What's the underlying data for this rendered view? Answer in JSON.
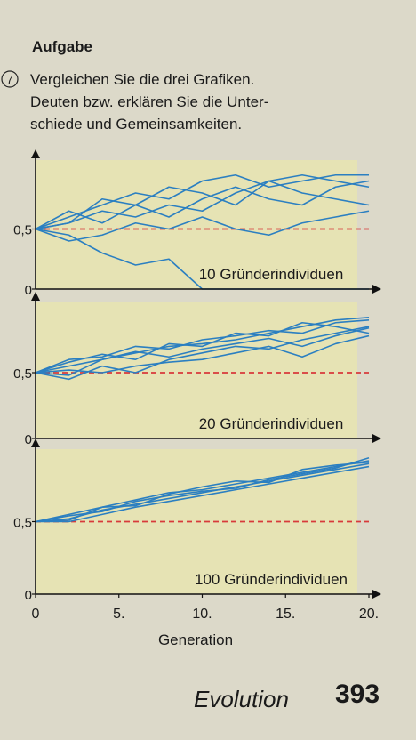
{
  "header": {
    "heading": "Aufgabe",
    "task_number": "7",
    "task_lines": [
      "Vergleichen Sie die drei Grafiken.",
      "Deuten bzw. erklären Sie die Unter-",
      "schiede und Gemeinsamkeiten."
    ]
  },
  "chart_data": [
    {
      "type": "line",
      "annotation": "10 Gründerindividuen",
      "x": [
        0,
        2,
        4,
        6,
        8,
        10,
        12,
        14,
        16,
        18,
        20
      ],
      "xlim": [
        0,
        20
      ],
      "ylim": [
        0,
        1
      ],
      "yticks": [
        0,
        {
          "value": 0.5,
          "label": "0,5"
        }
      ],
      "reference_line": {
        "value": 0.5,
        "color": "#d83a3a"
      },
      "series": [
        {
          "color": "#2b7fc1",
          "values": [
            0.5,
            0.6,
            0.7,
            0.8,
            0.75,
            0.9,
            0.95,
            0.85,
            0.9,
            0.95,
            0.95
          ]
        },
        {
          "color": "#2b7fc1",
          "values": [
            0.5,
            0.45,
            0.3,
            0.2,
            0.25,
            0.0,
            0.0,
            0.0,
            0.0,
            0.0,
            0.0
          ]
        },
        {
          "color": "#2b7fc1",
          "values": [
            0.5,
            0.55,
            0.75,
            0.7,
            0.85,
            0.8,
            0.7,
            0.9,
            0.8,
            0.75,
            0.7
          ]
        },
        {
          "color": "#2b7fc1",
          "values": [
            0.5,
            0.4,
            0.45,
            0.55,
            0.5,
            0.6,
            0.5,
            0.45,
            0.55,
            0.6,
            0.65
          ]
        },
        {
          "color": "#2b7fc1",
          "values": [
            0.5,
            0.65,
            0.55,
            0.7,
            0.6,
            0.75,
            0.85,
            0.75,
            0.7,
            0.85,
            0.9
          ]
        },
        {
          "color": "#2b7fc1",
          "values": [
            0.5,
            0.55,
            0.65,
            0.6,
            0.7,
            0.65,
            0.8,
            0.9,
            0.95,
            0.9,
            0.85
          ]
        }
      ]
    },
    {
      "type": "line",
      "annotation": "20 Gründerindividuen",
      "x": [
        0,
        2,
        4,
        6,
        8,
        10,
        12,
        14,
        16,
        18,
        20
      ],
      "xlim": [
        0,
        20
      ],
      "ylim": [
        0,
        1
      ],
      "yticks": [
        0,
        {
          "value": 0.5,
          "label": "0,5"
        }
      ],
      "reference_line": {
        "value": 0.5,
        "color": "#d83a3a"
      },
      "series": [
        {
          "color": "#2b7fc1",
          "values": [
            0.5,
            0.55,
            0.6,
            0.65,
            0.7,
            0.72,
            0.75,
            0.8,
            0.85,
            0.9,
            0.92
          ]
        },
        {
          "color": "#2b7fc1",
          "values": [
            0.5,
            0.45,
            0.55,
            0.5,
            0.6,
            0.65,
            0.7,
            0.68,
            0.75,
            0.8,
            0.85
          ]
        },
        {
          "color": "#2b7fc1",
          "values": [
            0.5,
            0.6,
            0.62,
            0.7,
            0.68,
            0.75,
            0.78,
            0.82,
            0.8,
            0.88,
            0.9
          ]
        },
        {
          "color": "#2b7fc1",
          "values": [
            0.5,
            0.52,
            0.5,
            0.55,
            0.58,
            0.6,
            0.65,
            0.7,
            0.62,
            0.72,
            0.78
          ]
        },
        {
          "color": "#2b7fc1",
          "values": [
            0.5,
            0.58,
            0.64,
            0.6,
            0.72,
            0.7,
            0.8,
            0.78,
            0.88,
            0.85,
            0.8
          ]
        },
        {
          "color": "#2b7fc1",
          "values": [
            0.5,
            0.48,
            0.6,
            0.66,
            0.62,
            0.68,
            0.72,
            0.76,
            0.7,
            0.78,
            0.84
          ]
        }
      ]
    },
    {
      "type": "line",
      "annotation": "100 Gründerindividuen",
      "x": [
        0,
        2,
        4,
        6,
        8,
        10,
        12,
        14,
        16,
        18,
        20
      ],
      "xlim": [
        0,
        20
      ],
      "ylim": [
        0,
        1
      ],
      "xticks": [
        0,
        {
          "value": 5,
          "label": "5."
        },
        {
          "value": 10,
          "label": "10."
        },
        {
          "value": 15,
          "label": "15."
        },
        {
          "value": 20,
          "label": "20."
        }
      ],
      "xlabel": "Generation",
      "yticks": [
        0,
        {
          "value": 0.5,
          "label": "0,5"
        }
      ],
      "reference_line": {
        "value": 0.5,
        "color": "#d83a3a"
      },
      "series": [
        {
          "color": "#2b7fc1",
          "values": [
            0.5,
            0.55,
            0.6,
            0.65,
            0.7,
            0.72,
            0.76,
            0.8,
            0.84,
            0.88,
            0.92
          ]
        },
        {
          "color": "#2b7fc1",
          "values": [
            0.5,
            0.52,
            0.58,
            0.62,
            0.66,
            0.7,
            0.74,
            0.78,
            0.82,
            0.86,
            0.9
          ]
        },
        {
          "color": "#2b7fc1",
          "values": [
            0.5,
            0.5,
            0.55,
            0.6,
            0.64,
            0.68,
            0.72,
            0.76,
            0.8,
            0.84,
            0.88
          ]
        },
        {
          "color": "#2b7fc1",
          "values": [
            0.5,
            0.54,
            0.57,
            0.64,
            0.68,
            0.71,
            0.73,
            0.79,
            0.83,
            0.87,
            0.94
          ]
        },
        {
          "color": "#2b7fc1",
          "values": [
            0.5,
            0.51,
            0.6,
            0.61,
            0.69,
            0.74,
            0.78,
            0.77,
            0.86,
            0.89,
            0.91
          ]
        }
      ]
    }
  ],
  "footer": {
    "section": "Evolution",
    "page": "393"
  }
}
